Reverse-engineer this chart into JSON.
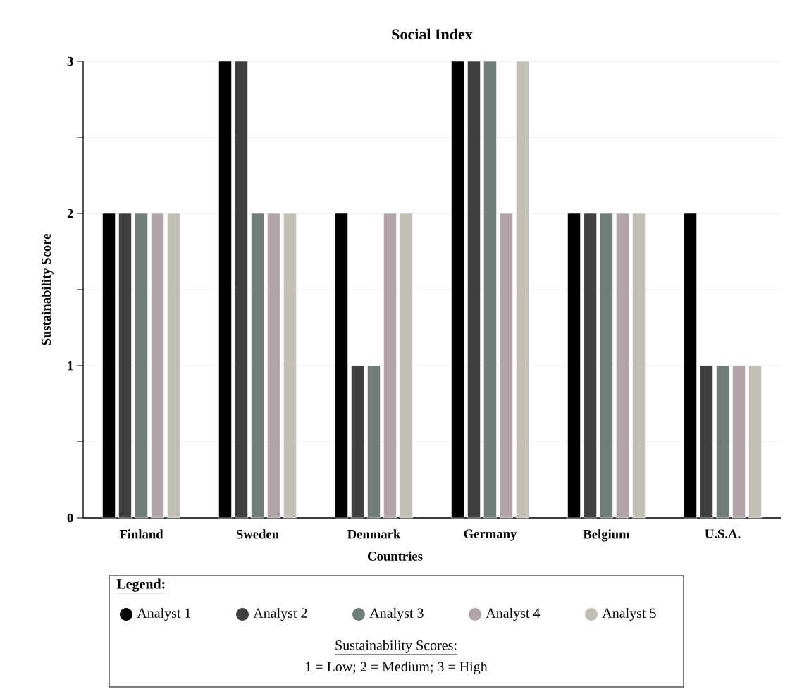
{
  "chart_data": {
    "type": "bar",
    "title": "Social Index",
    "xlabel": "Countries",
    "ylabel": "Sustainability Score",
    "legend_title": "Legend:",
    "categories": [
      "Finland",
      "Sweden",
      "Denmark",
      "Germany",
      "Belgium",
      "U.S.A."
    ],
    "series": [
      {
        "name": "Analyst 1",
        "color": "#000000",
        "values": [
          2,
          3,
          2,
          3,
          2,
          2
        ]
      },
      {
        "name": "Analyst 2",
        "color": "#404040",
        "values": [
          2,
          3,
          1,
          3,
          2,
          1
        ]
      },
      {
        "name": "Analyst 3",
        "color": "#717d7b",
        "values": [
          2,
          2,
          1,
          3,
          2,
          1
        ]
      },
      {
        "name": "Analyst 4",
        "color": "#b2a3a8",
        "values": [
          2,
          2,
          2,
          2,
          2,
          1
        ]
      },
      {
        "name": "Analyst 5",
        "color": "#c3bfb5",
        "values": [
          2,
          2,
          2,
          3,
          2,
          1
        ]
      }
    ],
    "ylim": [
      0,
      3
    ],
    "yticks": [
      0,
      {
        "value": 0.5,
        "label": null
      },
      1,
      {
        "value": 1.5,
        "label": null
      },
      2,
      {
        "value": 2.5,
        "label": null
      },
      3
    ],
    "grid": "y",
    "legend": "bottom",
    "marker": "circle",
    "annotations": [
      "Sustainability Scores:",
      "1 = Low; 2 = Medium; 3 = High"
    ]
  }
}
